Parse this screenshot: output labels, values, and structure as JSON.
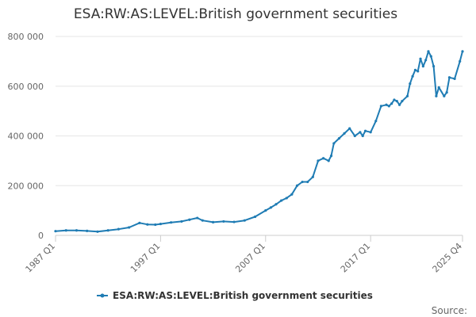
{
  "chart_data": {
    "type": "line",
    "title": "ESA:RW:AS:LEVEL:British government securities",
    "xlabel": "",
    "ylabel": "",
    "ylim": [
      0,
      800000
    ],
    "y_ticks": [
      {
        "value": 0,
        "label": "0"
      },
      {
        "value": 200000,
        "label": "200 000"
      },
      {
        "value": 400000,
        "label": "400 000"
      },
      {
        "value": 600000,
        "label": "600 000"
      },
      {
        "value": 800000,
        "label": "800 000"
      }
    ],
    "x_ticks": [
      {
        "value": 1987.0,
        "label": "1987 Q1"
      },
      {
        "value": 1997.0,
        "label": "1997 Q1"
      },
      {
        "value": 2007.0,
        "label": "2007 Q1"
      },
      {
        "value": 2017.0,
        "label": "2017 Q1"
      },
      {
        "value": 2025.75,
        "label": "2025 Q4"
      }
    ],
    "xlim": [
      1987.0,
      2025.75
    ],
    "grid": true,
    "legend_position": "bottom",
    "color": "#1f7cb4",
    "series": [
      {
        "name": "ESA:RW:AS:LEVEL:British government securities",
        "x": [
          1987.0,
          1988.0,
          1989.0,
          1990.0,
          1991.0,
          1992.0,
          1993.0,
          1994.0,
          1995.0,
          1995.75,
          1996.5,
          1997.0,
          1998.0,
          1999.0,
          1999.75,
          2000.5,
          2001.0,
          2002.0,
          2003.0,
          2004.0,
          2005.0,
          2006.0,
          2007.0,
          2007.5,
          2008.0,
          2008.5,
          2009.0,
          2009.5,
          2010.0,
          2010.5,
          2011.0,
          2011.5,
          2012.0,
          2012.5,
          2013.0,
          2013.25,
          2013.5,
          2014.0,
          2014.5,
          2015.0,
          2015.5,
          2016.0,
          2016.25,
          2016.5,
          2017.0,
          2017.5,
          2018.0,
          2018.5,
          2018.75,
          2019.0,
          2019.25,
          2019.5,
          2019.75,
          2020.0,
          2020.5,
          2020.75,
          2021.0,
          2021.25,
          2021.5,
          2021.75,
          2022.0,
          2022.25,
          2022.5,
          2022.75,
          2023.0,
          2023.25,
          2023.5,
          2024.0,
          2024.25,
          2024.5,
          2025.0,
          2025.5,
          2025.75
        ],
        "values": [
          17000,
          20000,
          20000,
          18000,
          15000,
          20000,
          25000,
          32000,
          50000,
          44000,
          43000,
          46000,
          52000,
          56000,
          63000,
          70000,
          60000,
          53000,
          56000,
          54000,
          60000,
          75000,
          100000,
          112000,
          125000,
          140000,
          150000,
          165000,
          200000,
          215000,
          215000,
          235000,
          300000,
          310000,
          300000,
          320000,
          370000,
          390000,
          410000,
          430000,
          400000,
          415000,
          400000,
          420000,
          415000,
          460000,
          520000,
          525000,
          520000,
          530000,
          545000,
          540000,
          525000,
          540000,
          560000,
          610000,
          640000,
          665000,
          660000,
          710000,
          680000,
          705000,
          740000,
          720000,
          680000,
          560000,
          595000,
          560000,
          575000,
          635000,
          630000,
          700000,
          740000
        ]
      }
    ]
  },
  "legend": {
    "label": "ESA:RW:AS:LEVEL:British government securities"
  },
  "source": {
    "label": "Source:"
  }
}
